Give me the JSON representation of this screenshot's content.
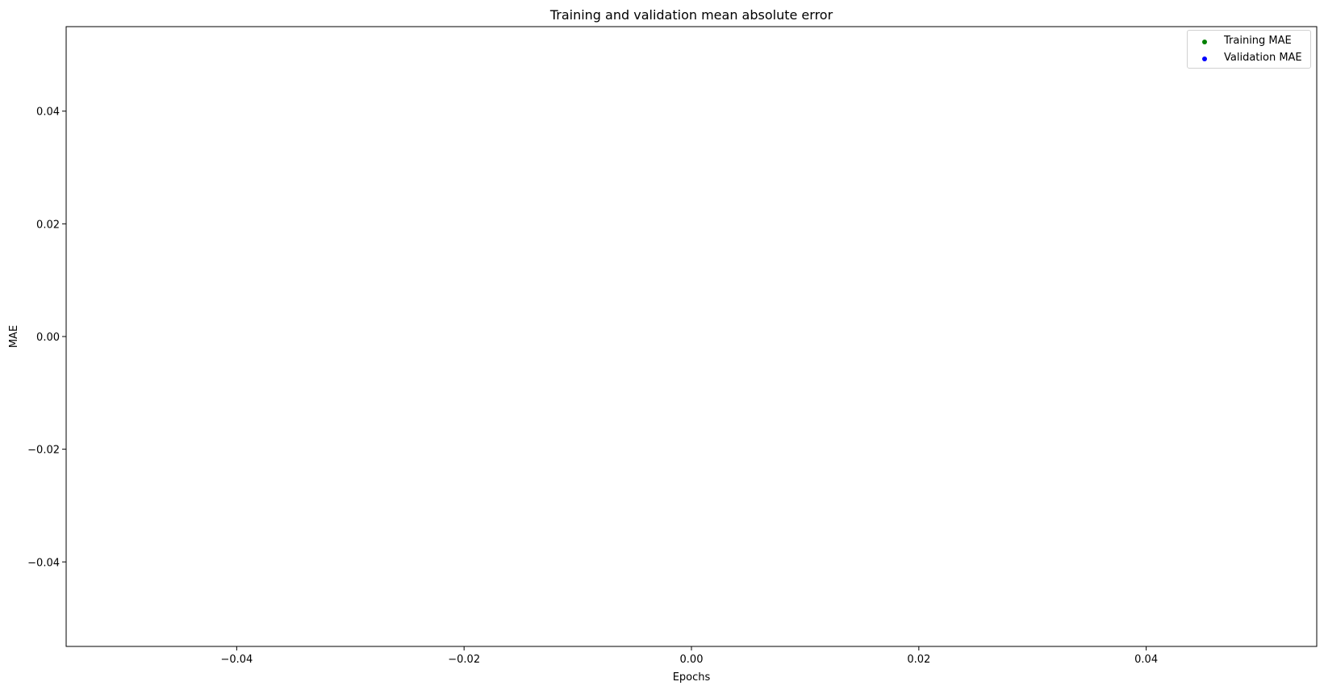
{
  "chart_data": {
    "type": "scatter",
    "title": "Training and validation mean absolute error",
    "xlabel": "Epochs",
    "ylabel": "MAE",
    "xlim": [
      -0.055,
      0.055
    ],
    "ylim": [
      -0.055,
      0.055
    ],
    "xticks": [
      -0.04,
      -0.02,
      0.0,
      0.02,
      0.04
    ],
    "xtick_labels": [
      "−0.04",
      "−0.02",
      "0.00",
      "0.02",
      "0.04"
    ],
    "yticks": [
      0.04,
      0.02,
      0.0,
      -0.02,
      -0.04
    ],
    "ytick_labels": [
      "0.04",
      "0.02",
      "0.00",
      "−0.02",
      "−0.04"
    ],
    "grid": false,
    "legend_position": "top-right",
    "series": [
      {
        "name": "Training MAE",
        "color": "#008000",
        "marker": "dot",
        "x": [],
        "y": []
      },
      {
        "name": "Validation MAE",
        "color": "#0000ff",
        "marker": "dot",
        "x": [],
        "y": []
      }
    ]
  }
}
